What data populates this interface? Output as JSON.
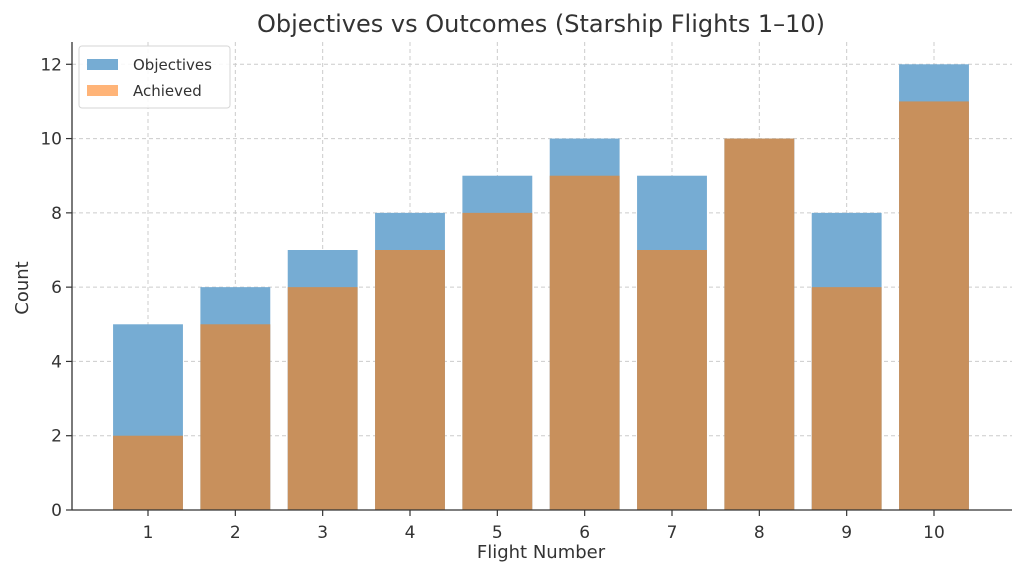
{
  "chart_data": {
    "type": "bar",
    "title": "Objectives vs Outcomes (Starship Flights 1–10)",
    "xlabel": "Flight Number",
    "ylabel": "Count",
    "categories": [
      "1",
      "2",
      "3",
      "4",
      "5",
      "6",
      "7",
      "8",
      "9",
      "10"
    ],
    "series": [
      {
        "name": "Objectives",
        "color": "#76acd3",
        "values": [
          5,
          6,
          7,
          8,
          9,
          10,
          9,
          10,
          8,
          12
        ]
      },
      {
        "name": "Achieved",
        "color": "#c8905c",
        "legend_color": "#ffb478",
        "values": [
          2,
          5,
          6,
          7,
          8,
          9,
          7,
          10,
          6,
          11
        ]
      }
    ],
    "ylim": [
      0,
      12.6
    ],
    "yticks": [
      "0",
      "2",
      "4",
      "6",
      "8",
      "10",
      "12"
    ],
    "grid": true,
    "legend_position": "top-left"
  }
}
